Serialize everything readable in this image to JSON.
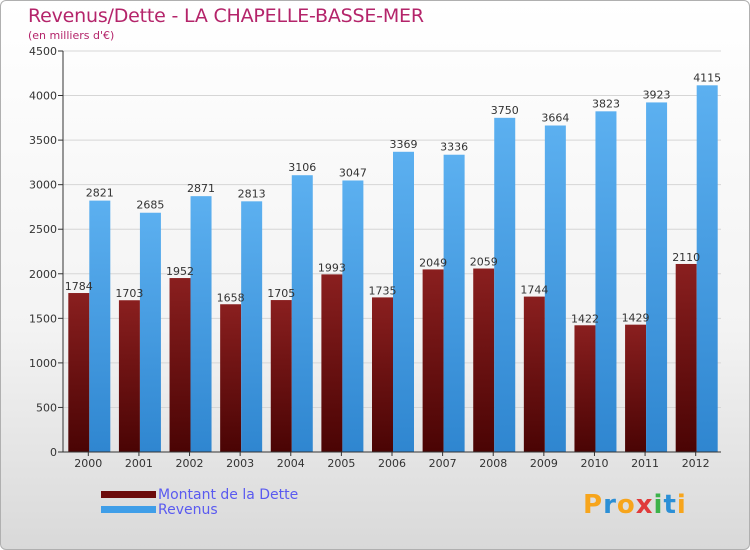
{
  "title": "Revenus/Dette - LA CHAPELLE-BASSE-MER",
  "subtitle": "(en milliers d'€)",
  "logo": {
    "letters": [
      "P",
      "r",
      "o",
      "x",
      "i",
      "t",
      "i"
    ],
    "colors": [
      "#f7a51c",
      "#2b8fd6",
      "#f7a51c",
      "#e03a3a",
      "#3cb24a",
      "#2b8fd6",
      "#f7a51c"
    ]
  },
  "legend": [
    {
      "label": "Montant de la Dette",
      "color": "#6b0a0a"
    },
    {
      "label": "Revenus",
      "color": "#3f9ee8"
    }
  ],
  "chart_data": {
    "type": "bar",
    "title": "Revenus/Dette - LA CHAPELLE-BASSE-MER",
    "subtitle": "(en milliers d'€)",
    "categories": [
      "2000",
      "2001",
      "2002",
      "2003",
      "2004",
      "2005",
      "2006",
      "2007",
      "2008",
      "2009",
      "2010",
      "2011",
      "2012"
    ],
    "series": [
      {
        "name": "Montant de la Dette",
        "color": "#7a1010",
        "values": [
          1784,
          1703,
          1952,
          1658,
          1705,
          1993,
          1735,
          2049,
          2059,
          1744,
          1422,
          1429,
          2110
        ]
      },
      {
        "name": "Revenus",
        "color": "#3f9ee8",
        "values": [
          2821,
          2685,
          2871,
          2813,
          3106,
          3047,
          3369,
          3336,
          3750,
          3664,
          3823,
          3923,
          4115
        ]
      }
    ],
    "ylim": [
      0,
      4500
    ],
    "yticks": [
      0,
      500,
      1000,
      1500,
      2000,
      2500,
      3000,
      3500,
      4000,
      4500
    ],
    "grid": true,
    "legend_position": "bottom-left"
  }
}
